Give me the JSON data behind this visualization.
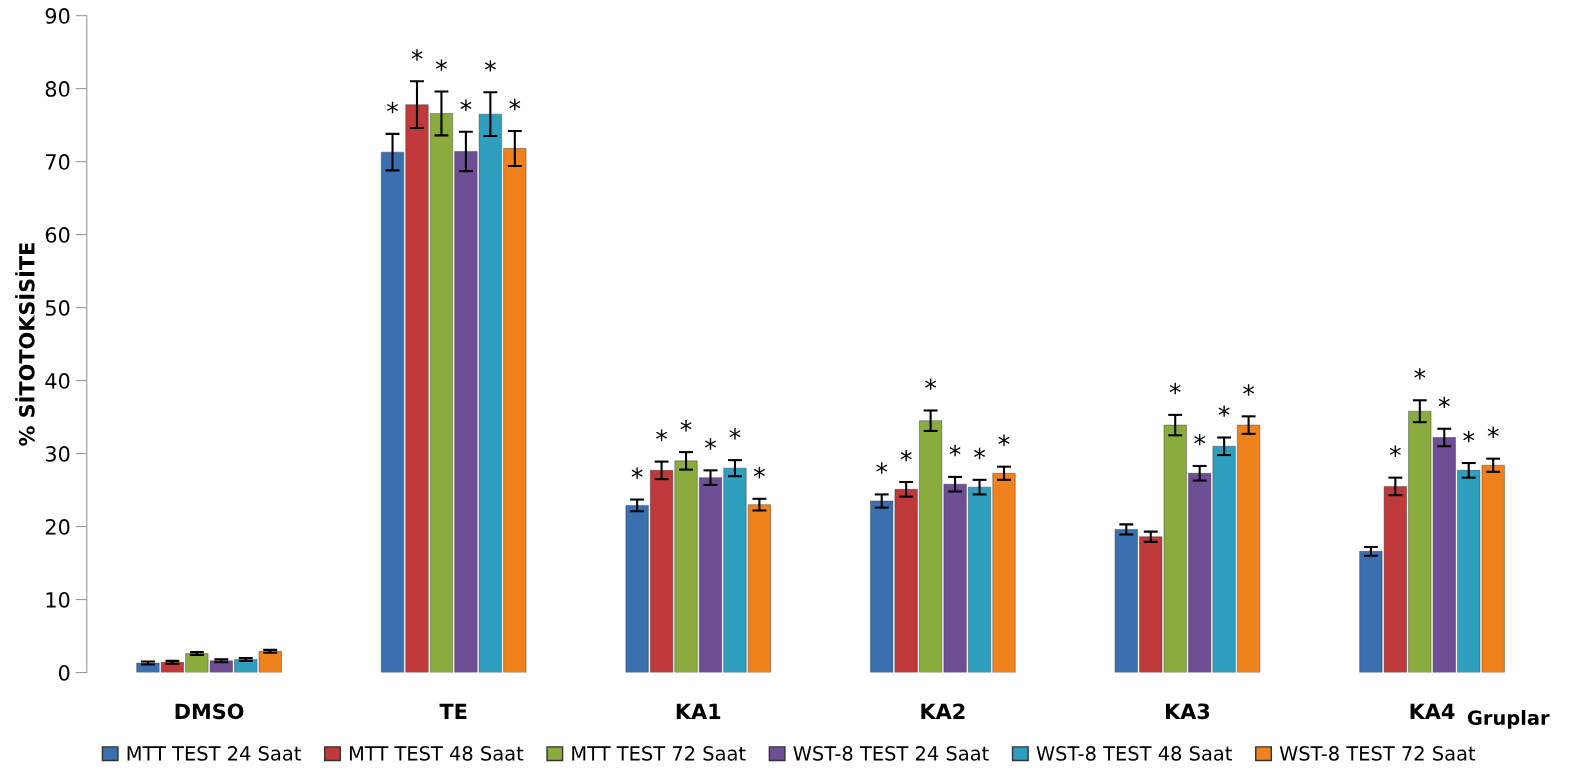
{
  "chart_data": {
    "type": "bar",
    "ylabel": "% SİTOTOKSİSİTE",
    "xlabel": "Gruplar",
    "categories": [
      "DMSO",
      "TE",
      "KA1",
      "KA2",
      "KA3",
      "KA4"
    ],
    "ylim": [
      0,
      90
    ],
    "yticks": [
      0,
      10,
      20,
      30,
      40,
      50,
      60,
      70,
      80,
      90
    ],
    "grid": false,
    "legend": "bottom",
    "series": [
      {
        "name": "MTT TEST 24 Saat",
        "color": "#3a6fb0",
        "values": [
          1.3,
          71.3,
          22.9,
          23.5,
          19.6,
          16.6
        ],
        "errors": [
          0.2,
          2.5,
          0.8,
          0.9,
          0.7,
          0.6
        ],
        "value_labels": [
          null,
          "*",
          "*",
          "*",
          null,
          null
        ]
      },
      {
        "name": "MTT TEST 48 Saat",
        "color": "#c0393b",
        "values": [
          1.4,
          77.8,
          27.7,
          25.1,
          18.6,
          25.5
        ],
        "errors": [
          0.2,
          3.2,
          1.2,
          1.0,
          0.7,
          1.2
        ],
        "value_labels": [
          null,
          "*",
          "*",
          "*",
          null,
          "*"
        ]
      },
      {
        "name": "MTT TEST 72 Saat",
        "color": "#8aac3e",
        "values": [
          2.6,
          76.6,
          29.0,
          34.5,
          33.9,
          35.8
        ],
        "errors": [
          0.2,
          3.0,
          1.2,
          1.4,
          1.4,
          1.5
        ],
        "value_labels": [
          null,
          "*",
          "*",
          "*",
          "*",
          "*"
        ]
      },
      {
        "name": "WST-8 TEST 24 Saat",
        "color": "#6e4f96",
        "values": [
          1.6,
          71.4,
          26.7,
          25.8,
          27.3,
          32.2
        ],
        "errors": [
          0.2,
          2.7,
          1.0,
          1.0,
          1.0,
          1.2
        ],
        "value_labels": [
          null,
          "*",
          "*",
          "*",
          "*",
          "*"
        ]
      },
      {
        "name": "WST-8 TEST 48 Saat",
        "color": "#2f9fbf",
        "values": [
          1.8,
          76.5,
          28.0,
          25.4,
          31.0,
          27.7
        ],
        "errors": [
          0.2,
          3.0,
          1.1,
          1.0,
          1.2,
          1.0
        ],
        "value_labels": [
          null,
          "*",
          "*",
          "*",
          "*",
          "*"
        ]
      },
      {
        "name": "WST-8 TEST 72 Saat",
        "color": "#f0821e",
        "values": [
          2.9,
          71.8,
          23.0,
          27.3,
          33.9,
          28.4
        ],
        "errors": [
          0.2,
          2.4,
          0.8,
          0.9,
          1.2,
          0.9
        ],
        "value_labels": [
          null,
          "*",
          "*",
          "*",
          "*",
          "*"
        ]
      }
    ]
  }
}
